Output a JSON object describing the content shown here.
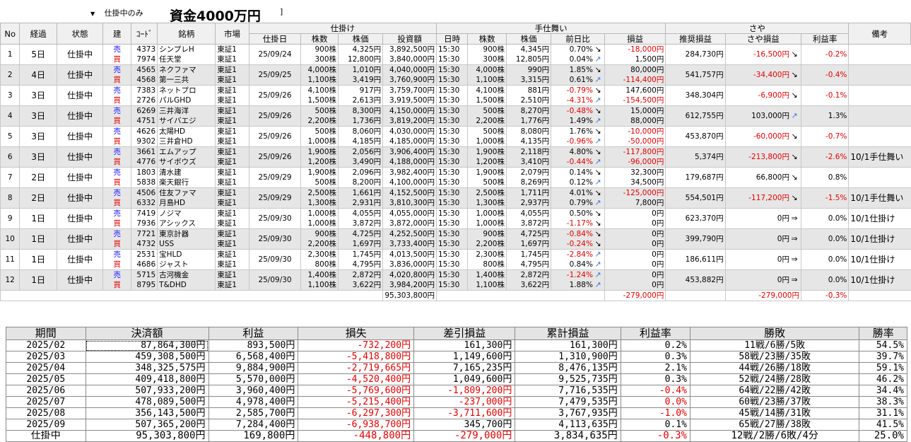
{
  "header": {
    "filter_value": "仕掛中のみ",
    "title": "資金4000万円",
    "title_tail": "]"
  },
  "colors": {
    "sell": "#1a1aff",
    "buy": "#e00000",
    "negative": "#e00000",
    "row_alt": "#e6e6e6"
  },
  "columns": {
    "no": "No",
    "elapsed": "経過",
    "status": "状態",
    "side": "建",
    "code": "ｺｰﾄﾞ",
    "name": "銘柄",
    "market": "市場",
    "group_entry": "仕掛け",
    "entry_date": "仕掛日",
    "entry_shares": "株数",
    "entry_price": "株価",
    "investment": "投資額",
    "group_exit": "手仕舞い",
    "exit_time": "日時",
    "exit_shares": "株数",
    "exit_price": "株価",
    "day_change": "前日比",
    "pnl": "損益",
    "group_spread": "さや",
    "est_pnl": "推奨損益",
    "spread_pnl": "さや損益",
    "return_rate": "利益率",
    "note": "備考"
  },
  "positions": [
    {
      "no": "1",
      "elapsed": "5日",
      "status": "仕掛中",
      "date": "25/09/24",
      "est": "284,730円",
      "spread": "-16,500円",
      "spread_neg": true,
      "spread_icon": "down",
      "rate": "-0.2%",
      "rate_neg": true,
      "note": "",
      "legs": [
        {
          "side": "売",
          "code": "4373",
          "name": "シンプレH",
          "market": "東証1",
          "shares": "900株",
          "price": "4,325円",
          "inv": "3,892,500円",
          "time": "15:30",
          "xshares": "900株",
          "xprice": "4,345円",
          "chg": "0.70%",
          "chg_neg": false,
          "chg_icon": "down",
          "pnl": "-18,000円",
          "pnl_neg": true
        },
        {
          "side": "買",
          "code": "7974",
          "name": "任天堂",
          "market": "東証1",
          "shares": "300株",
          "price": "12,800円",
          "inv": "3,840,000円",
          "time": "15:30",
          "xshares": "300株",
          "xprice": "12,805円",
          "chg": "0.04%",
          "chg_neg": false,
          "chg_icon": "up",
          "pnl": "1,500円",
          "pnl_neg": false
        }
      ]
    },
    {
      "no": "2",
      "elapsed": "4日",
      "status": "仕掛中",
      "date": "25/09/25",
      "est": "541,757円",
      "spread": "-34,400円",
      "spread_neg": true,
      "spread_icon": "down",
      "rate": "-0.4%",
      "rate_neg": true,
      "note": "",
      "legs": [
        {
          "side": "売",
          "code": "4565",
          "name": "ネクファマ",
          "market": "東証1",
          "shares": "4,000株",
          "price": "1,010円",
          "inv": "4,040,000円",
          "time": "15:30",
          "xshares": "4,000株",
          "xprice": "990円",
          "chg": "1.85%",
          "chg_neg": false,
          "chg_icon": "down",
          "pnl": "80,000円",
          "pnl_neg": false
        },
        {
          "side": "買",
          "code": "4568",
          "name": "第一三共",
          "market": "東証1",
          "shares": "1,100株",
          "price": "3,419円",
          "inv": "3,760,900円",
          "time": "15:30",
          "xshares": "1,100株",
          "xprice": "3,315円",
          "chg": "0.61%",
          "chg_neg": false,
          "chg_icon": "up",
          "pnl": "-114,400円",
          "pnl_neg": true
        }
      ]
    },
    {
      "no": "3",
      "elapsed": "3日",
      "status": "仕掛中",
      "date": "25/09/26",
      "est": "348,304円",
      "spread": "-6,900円",
      "spread_neg": true,
      "spread_icon": "down",
      "rate": "-0.1%",
      "rate_neg": true,
      "note": "",
      "legs": [
        {
          "side": "売",
          "code": "7383",
          "name": "ネットプロ",
          "market": "東証1",
          "shares": "4,100株",
          "price": "917円",
          "inv": "3,759,700円",
          "time": "15:30",
          "xshares": "4,100株",
          "xprice": "881円",
          "chg": "-0.79%",
          "chg_neg": true,
          "chg_icon": "down",
          "pnl": "147,600円",
          "pnl_neg": false
        },
        {
          "side": "買",
          "code": "2726",
          "name": "パルGHD",
          "market": "東証1",
          "shares": "1,500株",
          "price": "2,613円",
          "inv": "3,919,500円",
          "time": "15:30",
          "xshares": "1,500株",
          "xprice": "2,510円",
          "chg": "-4.31%",
          "chg_neg": true,
          "chg_icon": "up",
          "pnl": "-154,500円",
          "pnl_neg": true
        }
      ]
    },
    {
      "no": "4",
      "elapsed": "3日",
      "status": "仕掛中",
      "date": "25/09/26",
      "est": "612,755円",
      "spread": "103,000円",
      "spread_neg": false,
      "spread_icon": "up",
      "rate": "1.3%",
      "rate_neg": false,
      "note": "",
      "legs": [
        {
          "side": "売",
          "code": "6269",
          "name": "三井海洋",
          "market": "東証1",
          "shares": "500株",
          "price": "8,300円",
          "inv": "4,150,000円",
          "time": "15:30",
          "xshares": "500株",
          "xprice": "8,270円",
          "chg": "-0.48%",
          "chg_neg": true,
          "chg_icon": "down",
          "pnl": "15,000円",
          "pnl_neg": false
        },
        {
          "side": "買",
          "code": "4751",
          "name": "サイバエジ",
          "market": "東証1",
          "shares": "2,200株",
          "price": "1,736円",
          "inv": "3,819,200円",
          "time": "15:30",
          "xshares": "2,200株",
          "xprice": "1,776円",
          "chg": "1.49%",
          "chg_neg": false,
          "chg_icon": "up",
          "pnl": "88,000円",
          "pnl_neg": false
        }
      ]
    },
    {
      "no": "5",
      "elapsed": "3日",
      "status": "仕掛中",
      "date": "25/09/26",
      "est": "453,870円",
      "spread": "-60,000円",
      "spread_neg": true,
      "spread_icon": "down",
      "rate": "-0.7%",
      "rate_neg": true,
      "note": "",
      "legs": [
        {
          "side": "売",
          "code": "4626",
          "name": "太陽HD",
          "market": "東証1",
          "shares": "500株",
          "price": "8,060円",
          "inv": "4,030,000円",
          "time": "15:30",
          "xshares": "500株",
          "xprice": "8,080円",
          "chg": "1.76%",
          "chg_neg": false,
          "chg_icon": "down",
          "pnl": "-10,000円",
          "pnl_neg": true
        },
        {
          "side": "買",
          "code": "9302",
          "name": "三井倉HD",
          "market": "東証1",
          "shares": "1,000株",
          "price": "4,185円",
          "inv": "4,185,000円",
          "time": "15:30",
          "xshares": "1,000株",
          "xprice": "4,135円",
          "chg": "-0.96%",
          "chg_neg": true,
          "chg_icon": "up",
          "pnl": "-50,000円",
          "pnl_neg": true
        }
      ]
    },
    {
      "no": "6",
      "elapsed": "3日",
      "status": "仕掛中",
      "date": "25/09/26",
      "est": "5,374円",
      "spread": "-213,800円",
      "spread_neg": true,
      "spread_icon": "down",
      "rate": "-2.6%",
      "rate_neg": true,
      "note": "10/1手仕舞い",
      "legs": [
        {
          "side": "売",
          "code": "3661",
          "name": "エムアップ",
          "market": "東証1",
          "shares": "1,900株",
          "price": "2,056円",
          "inv": "3,906,400円",
          "time": "15:30",
          "xshares": "1,900株",
          "xprice": "2,118円",
          "chg": "4.80%",
          "chg_neg": false,
          "chg_icon": "down",
          "pnl": "-117,800円",
          "pnl_neg": true
        },
        {
          "side": "買",
          "code": "4776",
          "name": "サイボウズ",
          "market": "東証1",
          "shares": "1,200株",
          "price": "3,490円",
          "inv": "4,188,000円",
          "time": "15:30",
          "xshares": "1,200株",
          "xprice": "3,410円",
          "chg": "-0.44%",
          "chg_neg": true,
          "chg_icon": "up",
          "pnl": "-96,000円",
          "pnl_neg": true
        }
      ]
    },
    {
      "no": "7",
      "elapsed": "2日",
      "status": "仕掛中",
      "date": "25/09/29",
      "est": "179,687円",
      "spread": "66,800円",
      "spread_neg": false,
      "spread_icon": "down",
      "rate": "0.8%",
      "rate_neg": false,
      "note": "",
      "legs": [
        {
          "side": "売",
          "code": "1803",
          "name": "清水建",
          "market": "東証1",
          "shares": "1,900株",
          "price": "2,096円",
          "inv": "3,982,400円",
          "time": "15:30",
          "xshares": "1,900株",
          "xprice": "2,079円",
          "chg": "0.14%",
          "chg_neg": false,
          "chg_icon": "down",
          "pnl": "32,300円",
          "pnl_neg": false
        },
        {
          "side": "買",
          "code": "5838",
          "name": "楽天銀行",
          "market": "東証1",
          "shares": "500株",
          "price": "8,200円",
          "inv": "4,100,000円",
          "time": "15:30",
          "xshares": "500株",
          "xprice": "8,269円",
          "chg": "0.12%",
          "chg_neg": false,
          "chg_icon": "up",
          "pnl": "34,500円",
          "pnl_neg": false
        }
      ]
    },
    {
      "no": "8",
      "elapsed": "2日",
      "status": "仕掛中",
      "date": "25/09/29",
      "est": "554,501円",
      "spread": "-117,200円",
      "spread_neg": true,
      "spread_icon": "down",
      "rate": "-1.5%",
      "rate_neg": true,
      "note": "10/1手仕舞い",
      "legs": [
        {
          "side": "売",
          "code": "4506",
          "name": "住友ファマ",
          "market": "東証1",
          "shares": "2,500株",
          "price": "1,661円",
          "inv": "4,152,500円",
          "time": "15:30",
          "xshares": "2,500株",
          "xprice": "1,711円",
          "chg": "4.01%",
          "chg_neg": false,
          "chg_icon": "down",
          "pnl": "-125,000円",
          "pnl_neg": true
        },
        {
          "side": "買",
          "code": "6332",
          "name": "月島HD",
          "market": "東証1",
          "shares": "1,300株",
          "price": "2,931円",
          "inv": "3,810,300円",
          "time": "15:30",
          "xshares": "1,300株",
          "xprice": "2,937円",
          "chg": "0.79%",
          "chg_neg": false,
          "chg_icon": "up",
          "pnl": "7,800円",
          "pnl_neg": false
        }
      ]
    },
    {
      "no": "9",
      "elapsed": "1日",
      "status": "仕掛中",
      "date": "25/09/30",
      "est": "623,370円",
      "spread": "0円",
      "spread_neg": false,
      "spread_icon": "flat",
      "rate": "0.0%",
      "rate_neg": false,
      "note": "10/1仕掛け",
      "legs": [
        {
          "side": "売",
          "code": "7419",
          "name": "ノジマ",
          "market": "東証1",
          "shares": "1,000株",
          "price": "4,055円",
          "inv": "4,055,000円",
          "time": "15:30",
          "xshares": "1,000株",
          "xprice": "4,055円",
          "chg": "0.50%",
          "chg_neg": false,
          "chg_icon": "down",
          "pnl": "0円",
          "pnl_neg": false
        },
        {
          "side": "買",
          "code": "7936",
          "name": "アシックス",
          "market": "東証1",
          "shares": "1,000株",
          "price": "3,872円",
          "inv": "3,872,000円",
          "time": "15:30",
          "xshares": "1,000株",
          "xprice": "3,872円",
          "chg": "-1.17%",
          "chg_neg": true,
          "chg_icon": "down",
          "pnl": "0円",
          "pnl_neg": false
        }
      ]
    },
    {
      "no": "10",
      "elapsed": "1日",
      "status": "仕掛中",
      "date": "25/09/30",
      "est": "399,790円",
      "spread": "0円",
      "spread_neg": false,
      "spread_icon": "flat",
      "rate": "0.0%",
      "rate_neg": false,
      "note": "10/1仕掛け",
      "legs": [
        {
          "side": "売",
          "code": "7721",
          "name": "東京計器",
          "market": "東証1",
          "shares": "900株",
          "price": "4,725円",
          "inv": "4,252,500円",
          "time": "15:30",
          "xshares": "900株",
          "xprice": "4,725円",
          "chg": "-0.84%",
          "chg_neg": true,
          "chg_icon": "down",
          "pnl": "0円",
          "pnl_neg": false
        },
        {
          "side": "買",
          "code": "4732",
          "name": "USS",
          "market": "東証1",
          "shares": "2,200株",
          "price": "1,697円",
          "inv": "3,733,400円",
          "time": "15:30",
          "xshares": "2,200株",
          "xprice": "1,697円",
          "chg": "-0.24%",
          "chg_neg": true,
          "chg_icon": "down",
          "pnl": "0円",
          "pnl_neg": false
        }
      ]
    },
    {
      "no": "11",
      "elapsed": "1日",
      "status": "仕掛中",
      "date": "25/09/30",
      "est": "186,611円",
      "spread": "0円",
      "spread_neg": false,
      "spread_icon": "flat",
      "rate": "0.0%",
      "rate_neg": false,
      "note": "10/1仕掛け",
      "legs": [
        {
          "side": "売",
          "code": "2531",
          "name": "宝HLD",
          "market": "東証1",
          "shares": "2,300株",
          "price": "1,745円",
          "inv": "4,013,500円",
          "time": "15:30",
          "xshares": "2,300株",
          "xprice": "1,745円",
          "chg": "-2.84%",
          "chg_neg": true,
          "chg_icon": "up",
          "pnl": "0円",
          "pnl_neg": false
        },
        {
          "side": "買",
          "code": "4686",
          "name": "ジャスト",
          "market": "東証1",
          "shares": "800株",
          "price": "4,795円",
          "inv": "3,836,000円",
          "time": "15:30",
          "xshares": "800株",
          "xprice": "4,795円",
          "chg": "0.84%",
          "chg_neg": false,
          "chg_icon": "up",
          "pnl": "0円",
          "pnl_neg": false
        }
      ]
    },
    {
      "no": "12",
      "elapsed": "1日",
      "status": "仕掛中",
      "date": "25/09/30",
      "est": "453,882円",
      "spread": "0円",
      "spread_neg": false,
      "spread_icon": "flat",
      "rate": "0.0%",
      "rate_neg": false,
      "note": "10/1仕掛け",
      "legs": [
        {
          "side": "売",
          "code": "5715",
          "name": "古河機金",
          "market": "東証1",
          "shares": "1,400株",
          "price": "2,872円",
          "inv": "4,020,800円",
          "time": "15:30",
          "xshares": "1,400株",
          "xprice": "2,872円",
          "chg": "-1.24%",
          "chg_neg": true,
          "chg_icon": "up",
          "pnl": "0円",
          "pnl_neg": false
        },
        {
          "side": "買",
          "code": "8795",
          "name": "T&DHD",
          "market": "東証1",
          "shares": "1,100株",
          "price": "3,622円",
          "inv": "3,984,200円",
          "time": "15:30",
          "xshares": "1,100株",
          "xprice": "3,622円",
          "chg": "1.88%",
          "chg_neg": false,
          "chg_icon": "up",
          "pnl": "0円",
          "pnl_neg": false
        }
      ]
    }
  ],
  "totals": {
    "investment": "95,303,800円",
    "pnl": "-279,000円",
    "spread": "-279,000円",
    "rate": "-0.3%"
  },
  "summary": {
    "headers": [
      "期間",
      "決済額",
      "利益",
      "損失",
      "差引損益",
      "累計損益",
      "利益率",
      "勝敗",
      "勝率"
    ],
    "rows": [
      {
        "period": "2025/02",
        "settle": "87,864,300円",
        "profit": "893,500円",
        "loss": "-732,200円",
        "net": "161,300円",
        "cum": "161,300円",
        "rate": "0.2%",
        "wl": "11戦/6勝/5敗",
        "win": "54.5%",
        "net_neg": false,
        "rate_neg": false
      },
      {
        "period": "2025/03",
        "settle": "459,308,500円",
        "profit": "6,568,400円",
        "loss": "-5,418,800円",
        "net": "1,149,600円",
        "cum": "1,310,900円",
        "rate": "0.3%",
        "wl": "58戦/23勝/35敗",
        "win": "39.7%",
        "net_neg": false,
        "rate_neg": false
      },
      {
        "period": "2025/04",
        "settle": "348,325,575円",
        "profit": "9,884,900円",
        "loss": "-2,719,665円",
        "net": "7,165,235円",
        "cum": "8,476,135円",
        "rate": "2.1%",
        "wl": "44戦/26勝/18敗",
        "win": "59.1%",
        "net_neg": false,
        "rate_neg": false
      },
      {
        "period": "2025/05",
        "settle": "409,418,800円",
        "profit": "5,570,000円",
        "loss": "-4,520,400円",
        "net": "1,049,600円",
        "cum": "9,525,735円",
        "rate": "0.3%",
        "wl": "52戦/24勝/28敗",
        "win": "46.2%",
        "net_neg": false,
        "rate_neg": false
      },
      {
        "period": "2025/06",
        "settle": "507,933,200円",
        "profit": "3,960,400円",
        "loss": "-5,769,600円",
        "net": "-1,809,200円",
        "cum": "7,716,535円",
        "rate": "-0.4%",
        "wl": "64戦/22勝/42敗",
        "win": "34.4%",
        "net_neg": true,
        "rate_neg": true
      },
      {
        "period": "2025/07",
        "settle": "478,089,500円",
        "profit": "4,978,400円",
        "loss": "-5,215,400円",
        "net": "-237,000円",
        "cum": "7,479,535円",
        "rate": "0.0%",
        "wl": "60戦/23勝/37敗",
        "win": "38.3%",
        "net_neg": true,
        "rate_neg": true
      },
      {
        "period": "2025/08",
        "settle": "356,143,500円",
        "profit": "2,585,700円",
        "loss": "-6,297,300円",
        "net": "-3,711,600円",
        "cum": "3,767,935円",
        "rate": "-1.0%",
        "wl": "45戦/14勝/31敗",
        "win": "31.1%",
        "net_neg": true,
        "rate_neg": true
      },
      {
        "period": "2025/09",
        "settle": "507,365,200円",
        "profit": "7,284,400円",
        "loss": "-6,938,700円",
        "net": "345,700円",
        "cum": "4,113,635円",
        "rate": "0.1%",
        "wl": "65戦/27勝/38敗",
        "win": "41.5%",
        "net_neg": false,
        "rate_neg": false
      },
      {
        "period": "仕掛中",
        "settle": "95,303,800円",
        "profit": "169,800円",
        "loss": "-448,800円",
        "net": "-279,000円",
        "cum": "3,834,635円",
        "rate": "-0.3%",
        "wl": "12戦/2勝/6敗/4分",
        "win": "25.0%",
        "net_neg": true,
        "rate_neg": true
      }
    ]
  }
}
